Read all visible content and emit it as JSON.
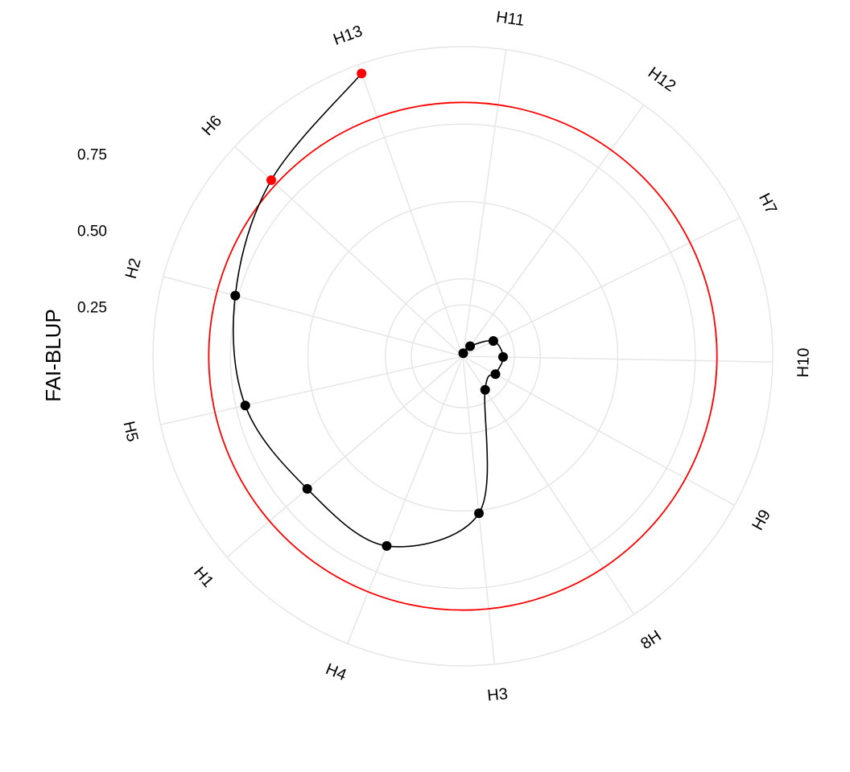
{
  "chart_data": {
    "type": "radar",
    "ylabel": "FAI-BLUP",
    "radial_ticks": [
      "0.25",
      "0.50",
      "0.75"
    ],
    "radial_tick_values": [
      0.25,
      0.5,
      0.75
    ],
    "rlim": [
      0,
      1.0
    ],
    "categories": [
      "H11",
      "H12",
      "H7",
      "H10",
      "H9",
      "8H",
      "H3",
      "H4",
      "H1",
      "H5",
      "H2",
      "H6",
      "H13"
    ],
    "values": [
      0.01,
      0.04,
      0.11,
      0.13,
      0.12,
      0.13,
      0.51,
      0.66,
      0.66,
      0.72,
      0.76,
      0.84,
      0.97
    ],
    "highlighted": [
      "H6",
      "H13"
    ],
    "threshold": 0.82,
    "colors": {
      "line": "#000000",
      "point": "#000000",
      "highlight": "#ff0000",
      "threshold": "#ff0000",
      "grid": "#e6e6e6"
    },
    "grid": true
  }
}
